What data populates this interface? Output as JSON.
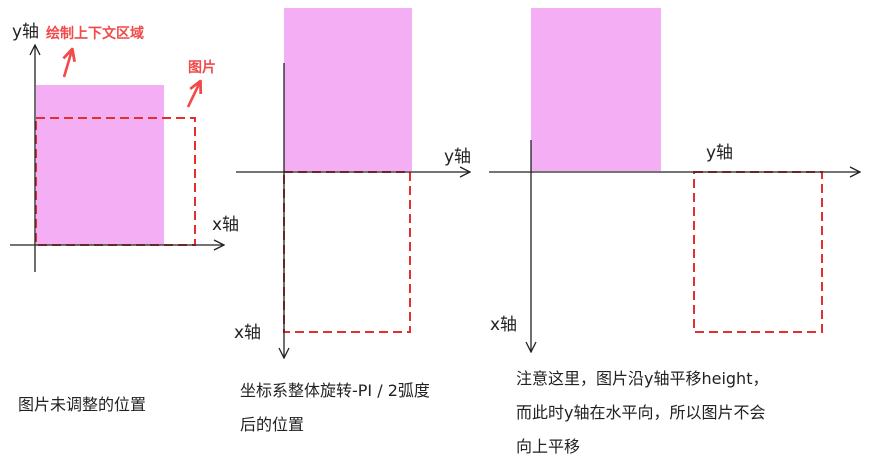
{
  "panel1": {
    "y_axis": "y轴",
    "x_axis": "x轴",
    "note_context": "绘制上下文区域",
    "note_image": "图片",
    "caption": "图片未调整的位置"
  },
  "panel2": {
    "y_axis": "y轴",
    "x_axis": "x轴",
    "caption_lines": [
      "坐标系整体旋转-PI / 2弧度",
      "后的位置"
    ]
  },
  "panel3": {
    "y_axis": "y轴",
    "x_axis": "x轴",
    "caption_lines": [
      "注意这里，图片沿y轴平移height，",
      "而此时y轴在水平向，所以图片不会",
      "向上平移"
    ]
  },
  "colors": {
    "image_fill": "#f4aef4",
    "dashed_outline": "#e03030",
    "annotation": "#f14a4a",
    "axis": "#222222"
  }
}
